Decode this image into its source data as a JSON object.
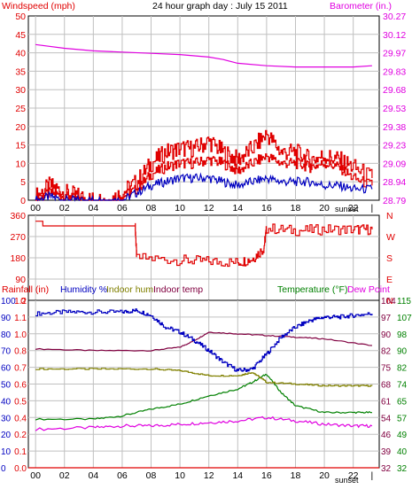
{
  "header": {
    "title": "24 hour graph day : July 15 2011",
    "left_label": "Windspeed (mph)",
    "right_label": "Barometer (in.)"
  },
  "colors": {
    "wind": "#e00000",
    "gust": "#e00000",
    "wind_avg": "#0000c0",
    "barometer": "#e000e0",
    "direction": "#e00000",
    "humidity": "#0000c0",
    "indoor_hum": "#808000",
    "indoor_temp": "#800040",
    "temperature": "#008000",
    "dew_point": "#e000e0",
    "rain": "#e00000",
    "grid": "#c0c0c0",
    "axis_text": "#000000"
  },
  "sunset_label": "sunset",
  "panel1_ticks": {
    "wind": [
      "50",
      "45",
      "40",
      "35",
      "30",
      "25",
      "20",
      "15",
      "10",
      "5",
      "0"
    ],
    "baro": [
      "30.27",
      "30.12",
      "29.97",
      "29.83",
      "29.68",
      "29.53",
      "29.38",
      "29.23",
      "29.09",
      "28.94",
      "28.79"
    ]
  },
  "panel2_ticks": {
    "deg": [
      "360",
      "270",
      "180",
      "90",
      "0"
    ],
    "compass": [
      "N",
      "W",
      "S",
      "E",
      "N"
    ]
  },
  "panel3": {
    "rain_label": "Rainfall (in)",
    "humidity_label": "Humidity %",
    "indoor_hum_label": "Indoor hum",
    "indoor_temp_label": "Indoor temp",
    "temperature_label": "Temperature (°F)",
    "dew_label": "Dew Point",
    "ticks_hum": [
      "100",
      "90",
      "80",
      "70",
      "60",
      "50",
      "40",
      "30",
      "20",
      "10",
      "0"
    ],
    "ticks_rain": [
      "1.2",
      "1.1",
      "1.0",
      "0.8",
      "0.7",
      "0.6",
      "0.5",
      "0.4",
      "0.2",
      "0.1",
      "0.0"
    ],
    "ticks_temp_inner": [
      "104",
      "97",
      "90",
      "82",
      "75",
      "68",
      "61",
      "54",
      "46",
      "39",
      "32"
    ],
    "ticks_temp_outer": [
      "115",
      "107",
      "98",
      "90",
      "82",
      "74",
      "65",
      "57",
      "49",
      "40",
      "32"
    ]
  },
  "x_ticks": [
    "00",
    "02",
    "04",
    "06",
    "08",
    "10",
    "12",
    "14",
    "16",
    "18",
    "20",
    "22"
  ],
  "chart_data": [
    {
      "type": "line",
      "title": "24 hour graph day : July 15 2011",
      "x_unit": "hour",
      "xlim": [
        -0.5,
        23.8
      ],
      "ylabel": "Windspeed (mph)",
      "ylim": [
        0,
        50
      ],
      "y2label": "Barometer (in.)",
      "y2lim": [
        28.79,
        30.27
      ],
      "series": [
        {
          "name": "Windspeed (mph)",
          "x": [
            0,
            1,
            2,
            3,
            4,
            5,
            6,
            7,
            8,
            9,
            10,
            11,
            12,
            13,
            14,
            15,
            16,
            17,
            18,
            19,
            20,
            21,
            22,
            23.3
          ],
          "y": [
            0,
            2,
            1,
            0,
            0,
            0,
            1,
            3,
            7,
            9,
            10,
            10,
            11,
            10,
            8,
            10,
            12,
            10,
            10,
            9,
            10,
            9,
            6,
            4
          ]
        },
        {
          "name": "Gust",
          "x": [
            0,
            1,
            2,
            3,
            4,
            5,
            6,
            7,
            8,
            9,
            10,
            11,
            12,
            13,
            14,
            15,
            16,
            17,
            18,
            19,
            20,
            21,
            22,
            23.3
          ],
          "y": [
            1,
            4,
            2,
            1,
            0,
            0,
            2,
            5,
            10,
            13,
            14,
            14,
            16,
            13,
            11,
            14,
            18,
            13,
            13,
            11,
            12,
            11,
            9,
            6
          ]
        },
        {
          "name": "Wind average",
          "x": [
            0,
            1,
            2,
            3,
            4,
            5,
            6,
            7,
            8,
            9,
            10,
            11,
            12,
            13,
            14,
            15,
            16,
            17,
            18,
            19,
            20,
            21,
            22,
            23.3
          ],
          "y": [
            0,
            1,
            0,
            0,
            0,
            0,
            0,
            2,
            4,
            5,
            6,
            6,
            6,
            5,
            4,
            5,
            6,
            5,
            5,
            5,
            4,
            4,
            3,
            3
          ]
        },
        {
          "name": "Barometer (in.)",
          "axis": "y2",
          "x": [
            0,
            2,
            4,
            6,
            8,
            10,
            12,
            13,
            14,
            16,
            18,
            20,
            22,
            23.3
          ],
          "y": [
            30.04,
            30.01,
            29.99,
            29.98,
            29.97,
            29.96,
            29.94,
            29.92,
            29.89,
            29.87,
            29.86,
            29.86,
            29.86,
            29.87
          ]
        }
      ]
    },
    {
      "type": "line",
      "x_unit": "hour",
      "xlim": [
        -0.5,
        23.8
      ],
      "ylim": [
        0,
        360
      ],
      "series": [
        {
          "name": "Wind direction (deg)",
          "x": [
            0,
            0.5,
            1,
            5,
            6.9,
            7,
            10,
            12,
            14,
            15,
            15.8,
            16,
            18,
            20,
            22,
            23.3
          ],
          "y": [
            335,
            315,
            315,
            315,
            315,
            180,
            170,
            165,
            160,
            175,
            220,
            305,
            295,
            300,
            300,
            300
          ]
        }
      ]
    },
    {
      "type": "line",
      "x_unit": "hour",
      "xlim": [
        -0.5,
        23.8
      ],
      "ylabel": "Humidity %",
      "ylim": [
        0,
        100
      ],
      "series": [
        {
          "name": "Humidity %",
          "x": [
            0,
            2,
            4,
            6,
            7,
            8,
            9,
            10,
            11,
            12,
            13,
            14,
            15,
            16,
            17,
            18,
            19,
            20,
            21,
            22,
            23.3
          ],
          "y": [
            92,
            93,
            93,
            93,
            94,
            91,
            84,
            81,
            76,
            70,
            63,
            58,
            59,
            68,
            78,
            84,
            88,
            90,
            90,
            91,
            92
          ]
        },
        {
          "name": "Indoor hum",
          "x": [
            0,
            4,
            8,
            10,
            12,
            14,
            15,
            16,
            18,
            20,
            22,
            23.3
          ],
          "y": [
            59,
            59,
            59,
            58,
            55,
            55,
            57,
            51,
            50,
            49,
            49,
            49
          ]
        },
        {
          "name": "Indoor temp",
          "x": [
            0,
            4,
            8,
            10,
            11,
            12,
            14,
            16,
            18,
            20,
            23.3
          ],
          "y": [
            71,
            70,
            70,
            72,
            76,
            81,
            80,
            79,
            78,
            77,
            73
          ]
        },
        {
          "name": "Temperature (°F)",
          "x": [
            0,
            4,
            6,
            8,
            10,
            12,
            14,
            15,
            16,
            17,
            18,
            20,
            22,
            23.3
          ],
          "y": [
            29,
            29,
            31,
            35,
            38,
            43,
            47,
            51,
            56,
            45,
            37,
            33,
            33,
            33
          ]
        },
        {
          "name": "Dew Point",
          "x": [
            0,
            4,
            6,
            8,
            10,
            12,
            14,
            16,
            18,
            20,
            22,
            23.3
          ],
          "y": [
            23,
            24,
            25,
            25,
            26,
            27,
            28,
            30,
            28,
            26,
            25,
            25
          ]
        },
        {
          "name": "Rainfall (in)",
          "x": [
            -0.5,
            23.8
          ],
          "y": [
            0.0,
            0.0
          ]
        }
      ]
    }
  ]
}
